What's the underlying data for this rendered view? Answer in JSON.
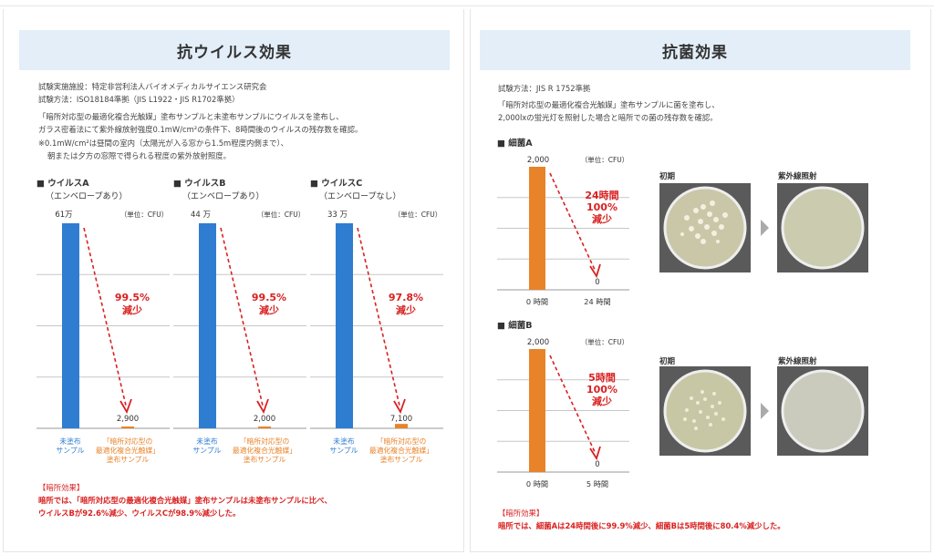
{
  "virus": {
    "title": "抗ウイルス効果",
    "facility": "試験実施施設：特定非営利法人バイオメディカルサイエンス研究会",
    "method": "試験方法：ISO18184準拠（JIS L1922・JIS R1702準拠）",
    "desc1": "「暗所対応型の最適化複合光触媒」塗布サンプルと未塗布サンプルにウイルスを塗布し、",
    "desc2": "ガラス密着法にて紫外線放射強度0.1mW/cm²の条件下、8時間後のウイルスの残存数を確認。",
    "note1": "※0.1mW/cm²は昼間の室内（太陽光が入る窓から1.5m程度内側まで）、",
    "note2": "朝または夕方の窓際で得られる程度の紫外放射照度。",
    "unit": "（単位：CFU）",
    "bar_label_untreated": "未塗布\nサンプル",
    "bar_label_treated": "「暗所対応型の\n最適化複合光触媒」\n塗布サンプル",
    "conclusion_head": "【暗所効果】",
    "conclusion1": "暗所では、「暗所対応型の最適化複合光触媒」塗布サンプルは未塗布サンプルに比べ、",
    "conclusion2": "ウイルスBが92.6%減少、ウイルスCが98.9%減少した。"
  },
  "bacteria": {
    "title": "抗菌効果",
    "method": "試験方法：JIS R 1752準拠",
    "desc1": "「暗所対応型の最適化複合光触媒」塗布サンプルに菌を塗布し、",
    "desc2": "2,000lxの蛍光灯を照射した場合と暗所での菌の残存数を確認。",
    "unit": "（単位：CFU）",
    "photo_initial": "初期",
    "photo_uv": "紫外線照射",
    "conclusion_head": "【暗所効果】",
    "conclusion": "暗所では、細菌Aは24時間後に99.9%減少、細菌Bは5時間後に80.4%減少した。"
  },
  "chart_data": [
    {
      "type": "bar",
      "name": "■ ウイルスA",
      "subtitle": "（エンベロープあり）",
      "categories": [
        "未塗布サンプル",
        "「暗所対応型の最適化複合光触媒」塗布サンプル"
      ],
      "values": [
        610000,
        2900
      ],
      "value_labels": [
        "61万",
        "2,900"
      ],
      "reduction": "99.5%\n減少",
      "colors": [
        "#2e7dd1",
        "#e8832a"
      ]
    },
    {
      "type": "bar",
      "name": "■ ウイルスB",
      "subtitle": "（エンベロープあり）",
      "categories": [
        "未塗布サンプル",
        "「暗所対応型の最適化複合光触媒」塗布サンプル"
      ],
      "values": [
        440000,
        2000
      ],
      "value_labels": [
        "44 万",
        "2,000"
      ],
      "reduction": "99.5%\n減少",
      "colors": [
        "#2e7dd1",
        "#e8832a"
      ]
    },
    {
      "type": "bar",
      "name": "■ ウイルスC",
      "subtitle": "（エンベロープなし）",
      "categories": [
        "未塗布サンプル",
        "「暗所対応型の最適化複合光触媒」塗布サンプル"
      ],
      "values": [
        330000,
        7100
      ],
      "value_labels": [
        "33 万",
        "7,100"
      ],
      "reduction": "97.8%\n減少",
      "colors": [
        "#2e7dd1",
        "#e8832a"
      ]
    },
    {
      "type": "bar",
      "name": "■ 細菌A",
      "categories": [
        "0 時間",
        "24 時間"
      ],
      "values": [
        2000,
        0
      ],
      "value_labels": [
        "2,000",
        "0"
      ],
      "reduction": "24時間\n100%\n減少",
      "colors": [
        "#e8832a",
        "#e8832a"
      ]
    },
    {
      "type": "bar",
      "name": "■ 細菌B",
      "categories": [
        "0 時間",
        "5 時間"
      ],
      "values": [
        2000,
        0
      ],
      "value_labels": [
        "2,000",
        "0"
      ],
      "reduction": "5時間\n100%\n減少",
      "colors": [
        "#e8832a",
        "#e8832a"
      ]
    }
  ]
}
